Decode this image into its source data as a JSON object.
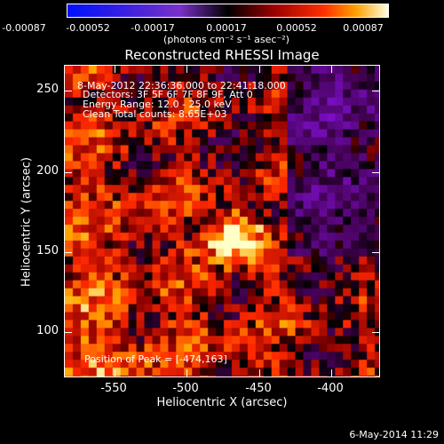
{
  "colorbar": {
    "ticks": [
      "-0.00087",
      "-0.00052",
      "-0.00017",
      "0.00017",
      "0.00052",
      "0.00087"
    ],
    "units": "(photons cm⁻² s⁻¹ asec⁻²)"
  },
  "title": "Reconstructed RHESSI Image",
  "annotations": {
    "time": "8-May-2012 22:36:36.000 to 22:41:18.000",
    "detectors": "Detectors: 3F 5F 6F 7F 8F 9F, Att 0",
    "energy": "Energy Range: 12.0 - 25.0 keV",
    "clean": "Clean     Total counts: 8.65E+03",
    "peak": "Position of Peak = [-474,163]"
  },
  "axes": {
    "xlabel": "Heliocentric X (arcsec)",
    "ylabel": "Heliocentric Y (arcsec)",
    "xticks": [
      "-550",
      "-500",
      "-450",
      "-400"
    ],
    "yticks": [
      "250",
      "200",
      "150",
      "100"
    ]
  },
  "timestamp": "6-May-2014 11:29",
  "image": {
    "peak_x_arcsec": -474,
    "peak_y_arcsec": 163,
    "x_range": [
      -577,
      -382
    ],
    "y_range": [
      72,
      267
    ]
  }
}
